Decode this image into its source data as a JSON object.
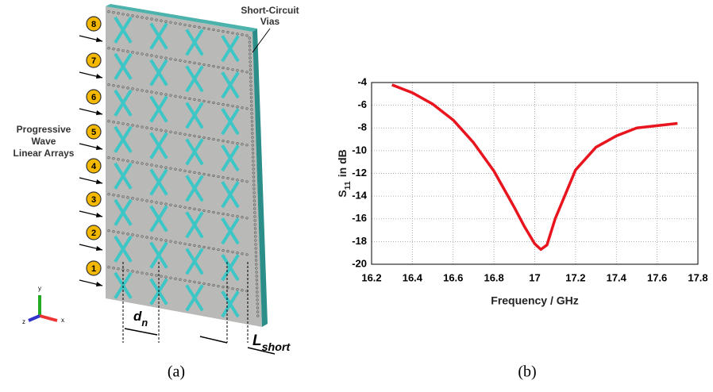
{
  "chart_data": {
    "type": "line",
    "xlabel": "Frequency / GHz",
    "ylabel_symbol": "S",
    "ylabel_subscript": "11",
    "ylabel_text": "in dB",
    "x": [
      16.3,
      16.4,
      16.5,
      16.6,
      16.7,
      16.8,
      16.9,
      16.95,
      17.0,
      17.03,
      17.06,
      17.1,
      17.2,
      17.3,
      17.4,
      17.5,
      17.6,
      17.7
    ],
    "series": [
      {
        "color": "#e8141e",
        "values": [
          -4.2,
          -4.9,
          -5.9,
          -7.3,
          -9.3,
          -11.8,
          -15.0,
          -16.7,
          -18.2,
          -18.7,
          -18.3,
          -16.0,
          -11.7,
          -9.7,
          -8.7,
          -8.0,
          -7.8,
          -7.6
        ]
      }
    ],
    "xlim": [
      16.2,
      17.8
    ],
    "xticks": [
      16.2,
      16.4,
      16.6,
      16.8,
      17,
      17.2,
      17.4,
      17.6,
      17.8
    ],
    "ylim": [
      -20,
      -4
    ],
    "yticks": [
      -20,
      -18,
      -16,
      -14,
      -12,
      -10,
      -8,
      -6,
      -4
    ],
    "grid": true
  },
  "diagram": {
    "ports": [
      "8",
      "7",
      "6",
      "5",
      "4",
      "3",
      "2",
      "1"
    ],
    "vias_label": [
      "Short-Circuit",
      "Vias"
    ],
    "array_label": [
      "Progressive",
      "Wave",
      "Linear Arrays"
    ],
    "dn_symbol": "d",
    "dn_subscript": "n",
    "lshort_symbol": "L",
    "lshort_subscript": "short",
    "axes": [
      "y",
      "z",
      "x"
    ]
  },
  "captions": [
    "(a)",
    "(b)"
  ]
}
